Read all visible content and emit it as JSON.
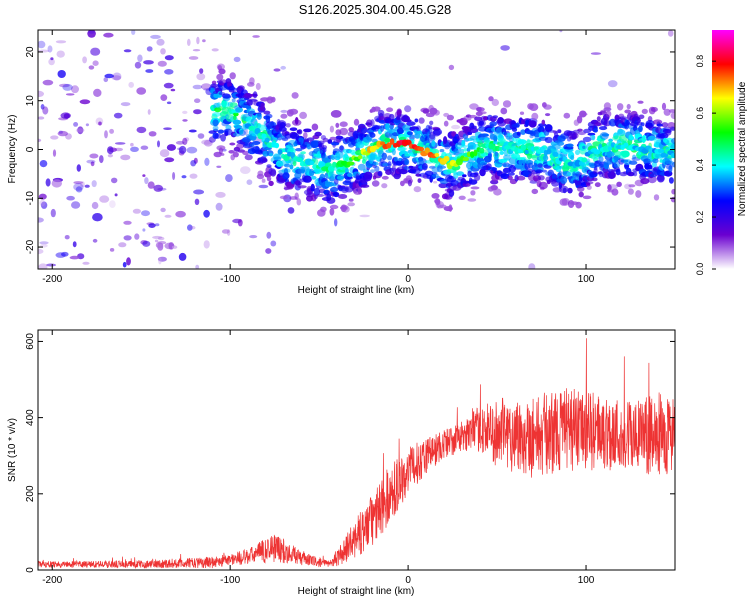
{
  "title": "S126.2025.304.00.45.G28",
  "chart_data": [
    {
      "type": "heatmap",
      "xlabel": "Height of straight line (km)",
      "ylabel": "Frequency (Hz)",
      "xlim": [
        -208,
        150
      ],
      "ylim": [
        -24.5,
        24.5
      ],
      "x_ticks": [
        -200,
        -100,
        0,
        100
      ],
      "y_ticks": [
        -20,
        -10,
        0,
        10,
        20
      ],
      "colorbar": {
        "label": "Normalized spectral amplitude",
        "range": [
          0,
          0.92
        ],
        "ticks": [
          "0.0",
          "0.2",
          "0.4",
          "0.6",
          "0.8"
        ],
        "colors": [
          "#ffffff",
          "#6a00d0",
          "#0000ff",
          "#00ffff",
          "#00ff00",
          "#ffff00",
          "#ff0000",
          "#ff00ff"
        ]
      },
      "ridge": {
        "x": [
          -100,
          -85,
          -70,
          -55,
          -45,
          -35,
          -25,
          -15,
          -5,
          5,
          15,
          25,
          35,
          45,
          55,
          65,
          75,
          85,
          95,
          105,
          120,
          135,
          150
        ],
        "y": [
          8,
          4,
          -1,
          -3,
          -4,
          -3,
          -1,
          1,
          1.5,
          0.5,
          -1.5,
          -3,
          -1,
          1,
          0,
          0,
          0,
          -2,
          -3,
          0,
          1,
          0,
          -1
        ]
      }
    },
    {
      "type": "line",
      "xlabel": "Height of straight line (km)",
      "ylabel": "SNR (10 * v/v)",
      "xlim": [
        -208,
        150
      ],
      "ylim": [
        0,
        630
      ],
      "x_ticks": [
        -200,
        -100,
        0,
        100
      ],
      "y_ticks": [
        0,
        200,
        400,
        600
      ],
      "series_color": "#ee3333",
      "envelope": {
        "x": [
          -208,
          -150,
          -110,
          -90,
          -75,
          -65,
          -55,
          -45,
          -40,
          -30,
          -20,
          -10,
          0,
          10,
          20,
          30,
          40,
          50,
          70,
          90,
          110,
          130,
          150
        ],
        "mean": [
          15,
          15,
          20,
          35,
          60,
          40,
          25,
          15,
          30,
          80,
          130,
          200,
          260,
          300,
          330,
          350,
          370,
          360,
          350,
          370,
          360,
          350,
          360
        ],
        "spread": [
          8,
          10,
          15,
          20,
          40,
          25,
          15,
          10,
          20,
          50,
          70,
          80,
          60,
          50,
          40,
          40,
          60,
          90,
          110,
          110,
          100,
          100,
          110
        ]
      }
    }
  ]
}
